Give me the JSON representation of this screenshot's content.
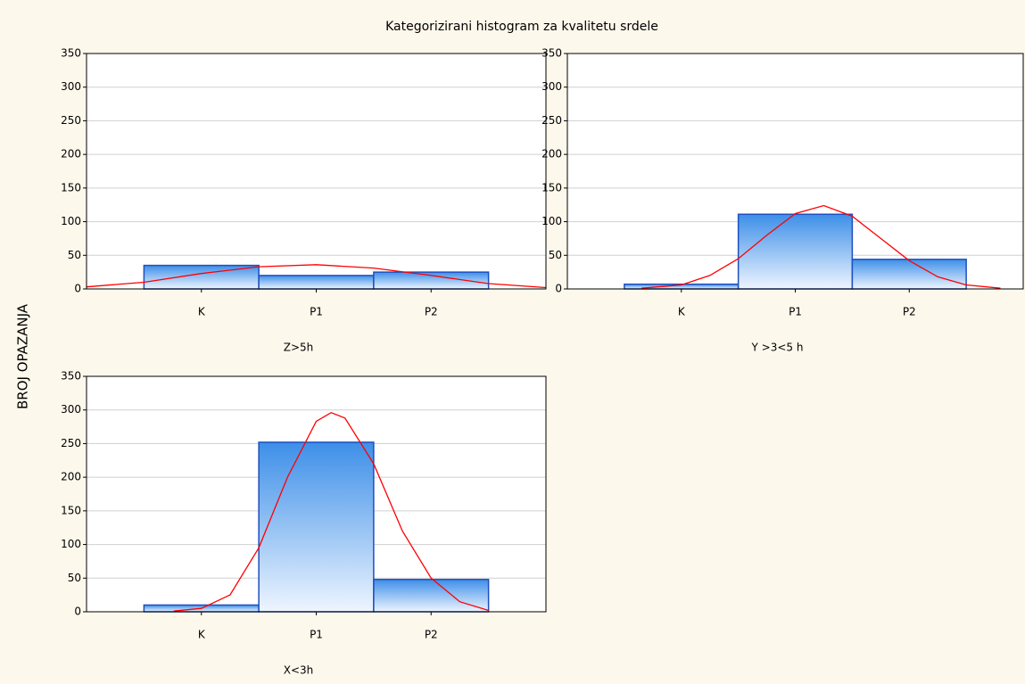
{
  "title": "Kategorizirani histogram za kvalitetu srdele",
  "ylabel": "BROJ OPAZANJA",
  "chart_data": [
    {
      "type": "bar",
      "xlabel": "Z>5h",
      "categories": [
        "K",
        "P1",
        "P2"
      ],
      "values": [
        35,
        20,
        25
      ],
      "color": "#3d8fe8",
      "edge_color": "#1f4fbf",
      "ylim": [
        0,
        350
      ],
      "yticks": [
        0,
        50,
        100,
        150,
        200,
        250,
        300,
        350
      ],
      "grid": true,
      "curve": {
        "color": "#ff0000",
        "x": [
          -1,
          -0.5,
          0,
          0.5,
          1,
          1.5,
          2,
          2.5,
          3
        ],
        "values": [
          3,
          10,
          23,
          33,
          36,
          31,
          20,
          8,
          2
        ]
      }
    },
    {
      "type": "bar",
      "xlabel": "Y >3<5 h",
      "categories": [
        "K",
        "P1",
        "P2"
      ],
      "values": [
        7,
        111,
        44
      ],
      "color": "#3d8fe8",
      "edge_color": "#1f4fbf",
      "ylim": [
        0,
        350
      ],
      "yticks": [
        0,
        50,
        100,
        150,
        200,
        250,
        300,
        350
      ],
      "grid": true,
      "curve": {
        "color": "#ff0000",
        "x": [
          -0.35,
          0,
          0.25,
          0.5,
          0.75,
          1,
          1.25,
          1.5,
          1.75,
          2,
          2.25,
          2.5,
          2.8
        ],
        "values": [
          1,
          6,
          20,
          45,
          80,
          112,
          124,
          108,
          75,
          42,
          18,
          6,
          1
        ]
      }
    },
    {
      "type": "bar",
      "xlabel": "X<3h",
      "categories": [
        "K",
        "P1",
        "P2"
      ],
      "values": [
        10,
        252,
        48
      ],
      "color": "#3d8fe8",
      "edge_color": "#1f4fbf",
      "ylim": [
        0,
        350
      ],
      "yticks": [
        0,
        50,
        100,
        150,
        200,
        250,
        300,
        350
      ],
      "grid": true,
      "curve": {
        "color": "#ff0000",
        "x": [
          -0.24,
          0,
          0.25,
          0.5,
          0.75,
          1,
          1.13,
          1.25,
          1.5,
          1.75,
          2,
          2.25,
          2.5
        ],
        "values": [
          1,
          5,
          25,
          95,
          200,
          283,
          296,
          288,
          220,
          120,
          50,
          15,
          2
        ]
      }
    }
  ]
}
